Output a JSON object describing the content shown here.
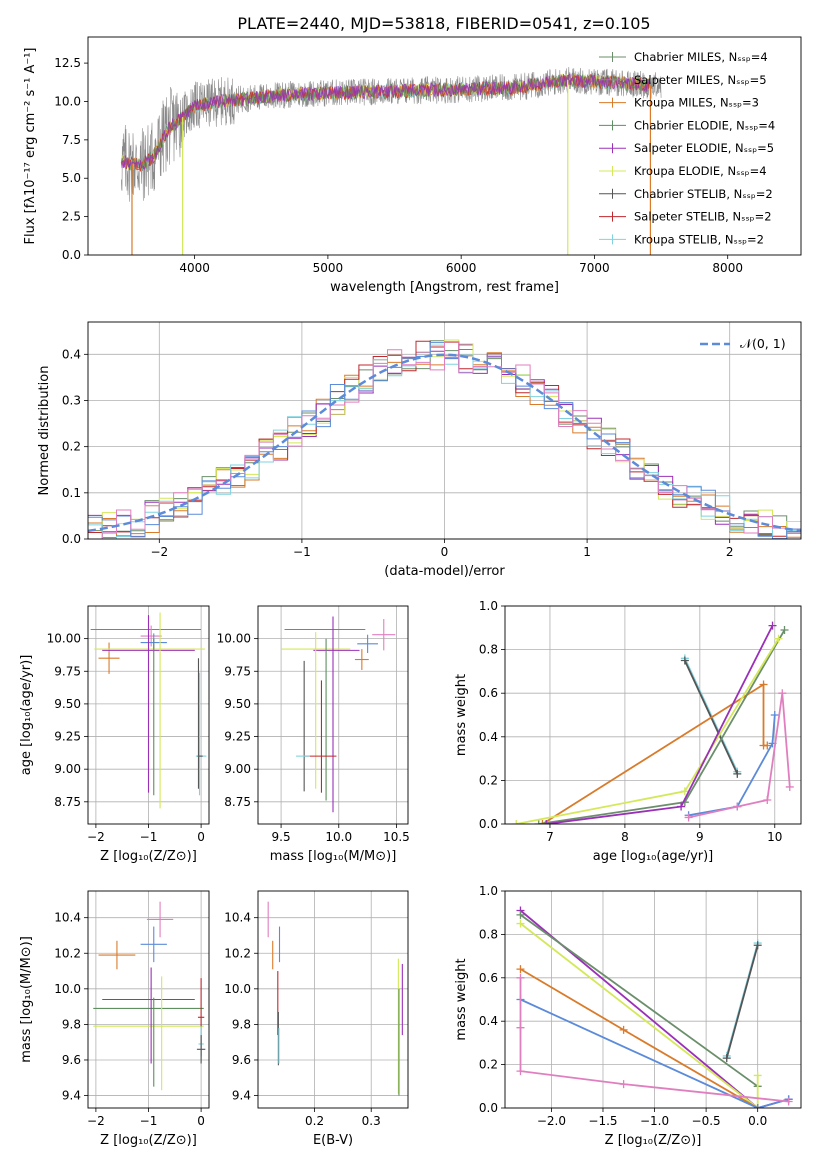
{
  "figure_title": "PLATE=2440, MJD=53818, FIBERID=0541, z=0.105",
  "colors": {
    "chabrier_miles": "#6b8e6b",
    "salpeter_miles": "#8a8a8a",
    "kroupa_miles": "#d97b2a",
    "chabrier_elodie": "#5e8f5e",
    "salpeter_elodie": "#9b30b8",
    "kroupa_elodie": "#d4e85a",
    "chabrier_stelib": "#555555",
    "salpeter_stelib": "#c0282d",
    "kroupa_stelib": "#7fd3e0",
    "pink": "#e07fc0",
    "blue": "#5b8bd9",
    "normal": "#5b8bd9"
  },
  "chart_data": [
    {
      "id": "spectrum",
      "type": "line",
      "xlabel": "wavelength [Angstrom, rest frame]",
      "ylabel": "Flux [fλ10⁻¹⁷ erg cm⁻² s⁻¹ A⁻¹]",
      "xlim": [
        3200,
        8550
      ],
      "ylim": [
        0,
        14.2
      ],
      "xticks": [
        "4000",
        "5000",
        "6000",
        "7000",
        "8000"
      ],
      "yticks": [
        "0.0",
        "2.5",
        "5.0",
        "7.5",
        "10.0",
        "12.5"
      ],
      "legend": [
        {
          "label": "Chabrier MILES, Nₛₛₚ=4",
          "color_key": "chabrier_miles"
        },
        {
          "label": "Salpeter MILES, Nₛₛₚ=5",
          "color_key": "salpeter_miles"
        },
        {
          "label": "Kroupa MILES, Nₛₛₚ=3",
          "color_key": "kroupa_miles"
        },
        {
          "label": "Chabrier ELODIE, Nₛₛₚ=4",
          "color_key": "chabrier_elodie"
        },
        {
          "label": "Salpeter ELODIE, Nₛₛₚ=5",
          "color_key": "salpeter_elodie"
        },
        {
          "label": "Kroupa ELODIE, Nₛₛₚ=4",
          "color_key": "kroupa_elodie"
        },
        {
          "label": "Chabrier STELIB, Nₛₛₚ=2",
          "color_key": "chabrier_stelib"
        },
        {
          "label": "Salpeter STELIB, Nₛₛₚ=2",
          "color_key": "salpeter_stelib"
        },
        {
          "label": "Kroupa STELIB, Nₛₛₚ=2",
          "color_key": "kroupa_stelib"
        }
      ],
      "legend_position": "upper right",
      "continuum": {
        "x": [
          3450,
          3600,
          3700,
          3800,
          3900,
          4000,
          4200,
          4500,
          4800,
          5200,
          5600,
          6000,
          6400,
          6800,
          7200,
          7500
        ],
        "y": [
          6.1,
          5.8,
          6.5,
          8.2,
          8.9,
          9.7,
          10.0,
          10.3,
          10.5,
          10.6,
          10.7,
          10.8,
          10.9,
          11.4,
          11.2,
          11.0
        ]
      },
      "dropouts": [
        {
          "x": 3530,
          "color_key": "kroupa_miles"
        },
        {
          "x": 3910,
          "color_key": "kroupa_elodie"
        },
        {
          "x": 6800,
          "color_key": "kroupa_elodie"
        },
        {
          "x": 7420,
          "color_key": "kroupa_miles"
        }
      ]
    },
    {
      "id": "residuals",
      "type": "histogram",
      "xlabel": "(data-model)/error",
      "ylabel": "Normed distribution",
      "xlim": [
        -2.5,
        2.5
      ],
      "ylim": [
        0,
        0.47
      ],
      "xticks": [
        "−2",
        "−1",
        "0",
        "1",
        "2"
      ],
      "yticks": [
        "0.0",
        "0.1",
        "0.2",
        "0.3",
        "0.4"
      ],
      "bin_width": 0.1,
      "legend": [
        {
          "label": "𝒩(0, 1)",
          "color_key": "normal"
        }
      ],
      "legend_position": "upper right",
      "series_colors": [
        "chabrier_miles",
        "kroupa_miles",
        "salpeter_elodie",
        "kroupa_elodie",
        "salpeter_stelib",
        "kroupa_stelib",
        "blue",
        "pink"
      ]
    },
    {
      "id": "age_vs_Z",
      "type": "scatter",
      "xlabel": "Z [log₁₀(Z/Z⊙)]",
      "ylabel": "age  [log₁₀(age/yr)]",
      "xlim": [
        -2.15,
        0.15
      ],
      "ylim": [
        8.58,
        10.25
      ],
      "xticks": [
        {
          "v": -2,
          "t": "−2"
        },
        {
          "v": -1,
          "t": "−1"
        },
        {
          "v": 0,
          "t": "0"
        }
      ],
      "yticks": [
        {
          "v": 8.75,
          "t": "8.75"
        },
        {
          "v": 9.0,
          "t": "9.00"
        },
        {
          "v": 9.25,
          "t": "9.25"
        },
        {
          "v": 9.5,
          "t": "9.50"
        },
        {
          "v": 9.75,
          "t": "9.75"
        },
        {
          "v": 10.0,
          "t": "10.00"
        }
      ],
      "points": [
        {
          "x": -1.05,
          "y": 10.07,
          "xerr": 1.05,
          "yerr": 0.0,
          "c": "chabrier_miles"
        },
        {
          "x": -1.75,
          "y": 9.85,
          "xerr": 0.2,
          "yerr": 0.12,
          "c": "kroupa_miles"
        },
        {
          "x": -0.95,
          "y": 10.02,
          "xerr": 0.2,
          "yerr": 0.08,
          "c": "pink"
        },
        {
          "x": -0.9,
          "y": 9.97,
          "xerr": 0.25,
          "yerr": 0.07,
          "c": "blue"
        },
        {
          "x": -0.98,
          "y": 9.92,
          "xerr": 1.05,
          "yerr": 0.0,
          "c": "kroupa_elodie"
        },
        {
          "x": -1.0,
          "y": 9.91,
          "xerr": 0.88,
          "yerr": 0.0,
          "c": "salpeter_elodie"
        },
        {
          "x": -1.0,
          "y": 9.5,
          "xerr": 0.0,
          "yerr": 0.68,
          "c": "salpeter_elodie"
        },
        {
          "x": -0.78,
          "y": 9.45,
          "xerr": 0.0,
          "yerr": 0.75,
          "c": "kroupa_elodie"
        },
        {
          "x": -0.9,
          "y": 9.4,
          "xerr": 0.0,
          "yerr": 0.6,
          "c": "chabrier_elodie"
        },
        {
          "x": -0.05,
          "y": 9.35,
          "xerr": 0.0,
          "yerr": 0.5,
          "c": "chabrier_stelib"
        },
        {
          "x": -0.03,
          "y": 9.27,
          "xerr": 0.0,
          "yerr": 0.47,
          "c": "kroupa_stelib"
        },
        {
          "x": 0.0,
          "y": 9.1,
          "xerr": 0.1,
          "yerr": 0.0,
          "c": "kroupa_stelib"
        },
        {
          "x": -0.02,
          "y": 9.1,
          "xerr": 0.05,
          "yerr": 0.0,
          "c": "chabrier_stelib"
        }
      ]
    },
    {
      "id": "age_vs_mass",
      "type": "scatter",
      "xlabel": "mass [log₁₀(M/M⊙)]",
      "ylabel": "",
      "xlim": [
        9.3,
        10.6
      ],
      "ylim": [
        8.58,
        10.25
      ],
      "xticks": [
        {
          "v": 9.5,
          "t": "9.5"
        },
        {
          "v": 10.0,
          "t": "10.0"
        },
        {
          "v": 10.5,
          "t": "10.5"
        }
      ],
      "yticks": [
        {
          "v": 8.75,
          "t": "8.75"
        },
        {
          "v": 9.0,
          "t": "9.00"
        },
        {
          "v": 9.25,
          "t": "9.25"
        },
        {
          "v": 9.5,
          "t": "9.50"
        },
        {
          "v": 9.75,
          "t": "9.75"
        },
        {
          "v": 10.0,
          "t": "10.00"
        }
      ],
      "points": [
        {
          "x": 9.88,
          "y": 10.07,
          "xerr": 0.35,
          "yerr": 0.0,
          "c": "chabrier_miles"
        },
        {
          "x": 10.2,
          "y": 9.84,
          "xerr": 0.06,
          "yerr": 0.08,
          "c": "kroupa_miles"
        },
        {
          "x": 10.39,
          "y": 10.03,
          "xerr": 0.1,
          "yerr": 0.12,
          "c": "pink"
        },
        {
          "x": 10.25,
          "y": 9.96,
          "xerr": 0.09,
          "yerr": 0.07,
          "c": "blue"
        },
        {
          "x": 9.8,
          "y": 9.92,
          "xerr": 0.3,
          "yerr": 0.0,
          "c": "kroupa_elodie"
        },
        {
          "x": 9.98,
          "y": 9.91,
          "xerr": 0.2,
          "yerr": 0.0,
          "c": "salpeter_elodie"
        },
        {
          "x": 9.95,
          "y": 9.42,
          "xerr": 0.0,
          "yerr": 0.75,
          "c": "salpeter_elodie"
        },
        {
          "x": 9.8,
          "y": 9.45,
          "xerr": 0.0,
          "yerr": 0.6,
          "c": "kroupa_elodie"
        },
        {
          "x": 9.89,
          "y": 9.38,
          "xerr": 0.0,
          "yerr": 0.62,
          "c": "chabrier_elodie"
        },
        {
          "x": 9.7,
          "y": 9.33,
          "xerr": 0.0,
          "yerr": 0.5,
          "c": "chabrier_stelib"
        },
        {
          "x": 9.85,
          "y": 9.25,
          "xerr": 0.0,
          "yerr": 0.43,
          "c": "salpeter_stelib"
        },
        {
          "x": 9.84,
          "y": 9.1,
          "xerr": 0.14,
          "yerr": 0.0,
          "c": "salpeter_stelib"
        },
        {
          "x": 9.69,
          "y": 9.1,
          "xerr": 0.06,
          "yerr": 0.0,
          "c": "kroupa_stelib"
        }
      ]
    },
    {
      "id": "weight_vs_age",
      "type": "line",
      "xlabel": "age  [log₁₀(age/yr)]",
      "ylabel": "mass weight",
      "xlim": [
        6.4,
        10.35
      ],
      "ylim": [
        0,
        1
      ],
      "xticks": [
        {
          "v": 7,
          "t": "7"
        },
        {
          "v": 8,
          "t": "8"
        },
        {
          "v": 9,
          "t": "9"
        },
        {
          "v": 10,
          "t": "10"
        }
      ],
      "yticks": [
        {
          "v": 0,
          "t": "0.0"
        },
        {
          "v": 0.2,
          "t": "0.2"
        },
        {
          "v": 0.4,
          "t": "0.4"
        },
        {
          "v": 0.6,
          "t": "0.6"
        },
        {
          "v": 0.8,
          "t": "0.8"
        },
        {
          "v": 1.0,
          "t": "1.0"
        }
      ],
      "series": [
        {
          "c": "kroupa_stelib",
          "x": [
            8.8,
            9.5
          ],
          "y": [
            0.76,
            0.24
          ]
        },
        {
          "c": "chabrier_stelib",
          "x": [
            8.8,
            9.5
          ],
          "y": [
            0.75,
            0.23
          ]
        },
        {
          "c": "kroupa_miles",
          "x": [
            6.9,
            9.85,
            9.85,
            9.9
          ],
          "y": [
            0.0,
            0.64,
            0.36,
            0.36
          ]
        },
        {
          "c": "chabrier_miles",
          "x": [
            6.85,
            8.8,
            10.13
          ],
          "y": [
            0.0,
            0.1,
            0.89
          ]
        },
        {
          "c": "kroupa_elodie",
          "x": [
            6.55,
            8.8,
            10.05
          ],
          "y": [
            0.0,
            0.15,
            0.85
          ]
        },
        {
          "c": "salpeter_elodie",
          "x": [
            6.95,
            8.75,
            9.97
          ],
          "y": [
            0.0,
            0.08,
            0.91
          ]
        },
        {
          "c": "blue",
          "x": [
            8.85,
            9.5,
            9.97,
            10.0
          ],
          "y": [
            0.04,
            0.08,
            0.37,
            0.5
          ]
        },
        {
          "c": "pink",
          "x": [
            8.85,
            9.5,
            9.9,
            10.1,
            10.2
          ],
          "y": [
            0.03,
            0.08,
            0.11,
            0.6,
            0.17
          ]
        }
      ]
    },
    {
      "id": "mass_vs_Z",
      "type": "scatter",
      "xlabel": "Z [log₁₀(Z/Z⊙)]",
      "ylabel": "mass [log₁₀(M/M⊙)]",
      "xlim": [
        -2.15,
        0.15
      ],
      "ylim": [
        9.33,
        10.55
      ],
      "xticks": [
        {
          "v": -2,
          "t": "−2"
        },
        {
          "v": -1,
          "t": "−1"
        },
        {
          "v": 0,
          "t": "0"
        }
      ],
      "yticks": [
        {
          "v": 9.4,
          "t": "9.4"
        },
        {
          "v": 9.6,
          "t": "9.6"
        },
        {
          "v": 9.8,
          "t": "9.8"
        },
        {
          "v": 10.0,
          "t": "10.0"
        },
        {
          "v": 10.2,
          "t": "10.2"
        },
        {
          "v": 10.4,
          "t": "10.4"
        }
      ],
      "points": [
        {
          "x": -0.78,
          "y": 10.39,
          "xerr": 0.25,
          "yerr": 0.1,
          "c": "pink"
        },
        {
          "x": -0.9,
          "y": 10.25,
          "xerr": 0.25,
          "yerr": 0.1,
          "c": "blue"
        },
        {
          "x": -1.6,
          "y": 10.19,
          "xerr": 0.35,
          "yerr": 0.08,
          "c": "kroupa_miles"
        },
        {
          "x": -1.0,
          "y": 9.94,
          "xerr": 0.88,
          "yerr": 0.0,
          "c": "salpeter_elodie"
        },
        {
          "x": -1.0,
          "y": 9.89,
          "xerr": 1.05,
          "yerr": 0.0,
          "c": "chabrier_elodie"
        },
        {
          "x": -1.0,
          "y": 9.79,
          "xerr": 1.05,
          "yerr": 0.0,
          "c": "kroupa_elodie"
        },
        {
          "x": -0.95,
          "y": 9.85,
          "xerr": 0.0,
          "yerr": 0.27,
          "c": "salpeter_elodie"
        },
        {
          "x": -0.9,
          "y": 9.7,
          "xerr": 0.0,
          "yerr": 0.25,
          "c": "chabrier_elodie"
        },
        {
          "x": -0.75,
          "y": 9.75,
          "xerr": 0.0,
          "yerr": 0.32,
          "c": "kroupa_elodie"
        },
        {
          "x": 0.0,
          "y": 9.84,
          "xerr": 0.06,
          "yerr": 0.22,
          "c": "salpeter_stelib"
        },
        {
          "x": 0.0,
          "y": 9.69,
          "xerr": 0.05,
          "yerr": 0.1,
          "c": "kroupa_stelib"
        },
        {
          "x": 0.0,
          "y": 9.66,
          "xerr": 0.08,
          "yerr": 0.08,
          "c": "chabrier_stelib"
        }
      ]
    },
    {
      "id": "mass_vs_ebv",
      "type": "scatter",
      "xlabel": "E(B-V)",
      "ylabel": "",
      "xlim": [
        0.1,
        0.365
      ],
      "ylim": [
        9.33,
        10.55
      ],
      "xticks": [
        {
          "v": 0.2,
          "t": "0.2"
        },
        {
          "v": 0.3,
          "t": "0.3"
        }
      ],
      "yticks": [
        {
          "v": 9.4,
          "t": "9.4"
        },
        {
          "v": 9.6,
          "t": "9.6"
        },
        {
          "v": 9.8,
          "t": "9.8"
        },
        {
          "v": 10.0,
          "t": "10.0"
        },
        {
          "v": 10.2,
          "t": "10.2"
        },
        {
          "v": 10.4,
          "t": "10.4"
        }
      ],
      "points": [
        {
          "x": 0.118,
          "y": 10.39,
          "xerr": 0.0,
          "yerr": 0.1,
          "c": "pink"
        },
        {
          "x": 0.138,
          "y": 10.25,
          "xerr": 0.0,
          "yerr": 0.1,
          "c": "blue"
        },
        {
          "x": 0.126,
          "y": 10.19,
          "xerr": 0.0,
          "yerr": 0.08,
          "c": "kroupa_miles"
        },
        {
          "x": 0.135,
          "y": 9.92,
          "xerr": 0.0,
          "yerr": 0.18,
          "c": "salpeter_stelib"
        },
        {
          "x": 0.136,
          "y": 9.72,
          "xerr": 0.0,
          "yerr": 0.15,
          "c": "chabrier_stelib"
        },
        {
          "x": 0.137,
          "y": 9.68,
          "xerr": 0.0,
          "yerr": 0.1,
          "c": "kroupa_stelib"
        },
        {
          "x": 0.355,
          "y": 9.94,
          "xerr": 0.0,
          "yerr": 0.2,
          "c": "salpeter_elodie"
        },
        {
          "x": 0.348,
          "y": 9.79,
          "xerr": 0.0,
          "yerr": 0.38,
          "c": "kroupa_elodie"
        },
        {
          "x": 0.349,
          "y": 9.7,
          "xerr": 0.0,
          "yerr": 0.3,
          "c": "chabrier_elodie"
        }
      ]
    },
    {
      "id": "weight_vs_Z",
      "type": "line",
      "xlabel": "Z [log₁₀(Z/Z⊙)]",
      "ylabel": "mass weight",
      "xlim": [
        -2.45,
        0.42
      ],
      "ylim": [
        0,
        1
      ],
      "xticks": [
        {
          "v": -2,
          "t": "−2.0"
        },
        {
          "v": -1.5,
          "t": "−1.5"
        },
        {
          "v": -1,
          "t": "−1.0"
        },
        {
          "v": -0.5,
          "t": "−0.5"
        },
        {
          "v": 0,
          "t": "0.0"
        }
      ],
      "yticks": [
        {
          "v": 0,
          "t": "0.0"
        },
        {
          "v": 0.2,
          "t": "0.2"
        },
        {
          "v": 0.4,
          "t": "0.4"
        },
        {
          "v": 0.6,
          "t": "0.6"
        },
        {
          "v": 0.8,
          "t": "0.8"
        },
        {
          "v": 1.0,
          "t": "1.0"
        }
      ],
      "series": [
        {
          "c": "kroupa_stelib",
          "x": [
            -0.3,
            0.0
          ],
          "y": [
            0.24,
            0.76
          ]
        },
        {
          "c": "chabrier_stelib",
          "x": [
            -0.3,
            0.0
          ],
          "y": [
            0.23,
            0.75
          ]
        },
        {
          "c": "salpeter_elodie",
          "x": [
            -2.3,
            0.0,
            0.3
          ],
          "y": [
            0.91,
            0.0,
            0.04
          ]
        },
        {
          "c": "chabrier_miles",
          "x": [
            -2.3,
            0.0
          ],
          "y": [
            0.89,
            0.1
          ]
        },
        {
          "c": "kroupa_elodie",
          "x": [
            -2.3,
            0.0,
            0.0
          ],
          "y": [
            0.85,
            0.0,
            0.15
          ]
        },
        {
          "c": "kroupa_miles",
          "x": [
            -2.3,
            -1.3,
            0.0
          ],
          "y": [
            0.64,
            0.36,
            0.0
          ]
        },
        {
          "c": "blue",
          "x": [
            -2.3,
            0.0,
            0.3
          ],
          "y": [
            0.5,
            0.0,
            0.04
          ]
        },
        {
          "c": "pink",
          "x": [
            -2.3,
            -2.3,
            -2.3,
            -1.3,
            0.3
          ],
          "y": [
            0.6,
            0.37,
            0.17,
            0.11,
            0.03
          ]
        }
      ]
    }
  ]
}
